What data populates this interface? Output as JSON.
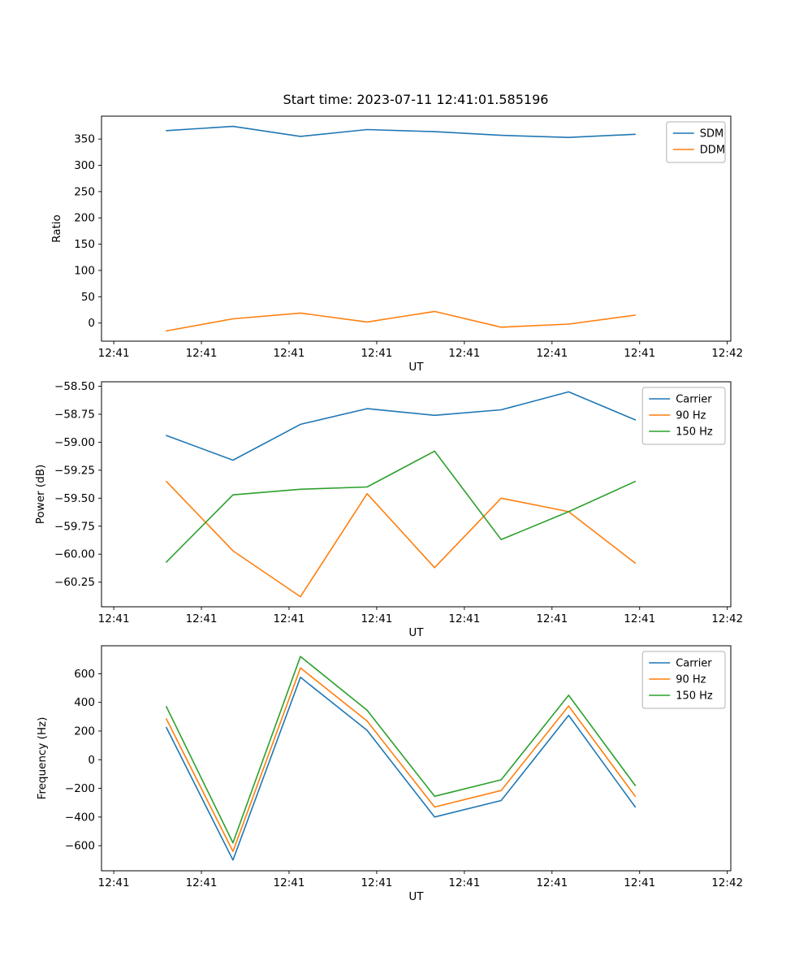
{
  "figure": {
    "title": "Start time: 2023-07-11 12:41:01.585196",
    "background": "#ffffff",
    "accent_colors": {
      "blue": "#1f77b4",
      "orange": "#ff7f0e",
      "green": "#2ca02c"
    }
  },
  "chart_data": [
    {
      "type": "line",
      "name": "ratio-plot",
      "xlabel": "UT",
      "ylabel": "Ratio",
      "x_tick_labels": [
        "12:41",
        "12:41",
        "12:41",
        "12:41",
        "12:41",
        "12:41",
        "12:41",
        "12:42"
      ],
      "y_tick_values": [
        0,
        50,
        100,
        150,
        200,
        250,
        300,
        350
      ],
      "y_tick_labels": [
        "0",
        "50",
        "100",
        "150",
        "200",
        "250",
        "300",
        "350"
      ],
      "xlim": [
        -0.14,
        7.04
      ],
      "ylim": [
        -34.5,
        393.5
      ],
      "grid": false,
      "legend_position": "upper right",
      "x": [
        0.6,
        1.36,
        2.13,
        2.89,
        3.66,
        4.42,
        5.19,
        5.95
      ],
      "series": [
        {
          "name": "SDM",
          "color": "#1f77b4",
          "values": [
            366,
            374,
            355,
            368,
            364,
            357,
            353,
            359
          ]
        },
        {
          "name": "DDM",
          "color": "#ff7f0e",
          "values": [
            -15,
            8,
            19,
            2,
            22,
            -8,
            -2,
            15
          ]
        }
      ]
    },
    {
      "type": "line",
      "name": "power-plot",
      "xlabel": "UT",
      "ylabel": "Power (dB)",
      "x_tick_labels": [
        "12:41",
        "12:41",
        "12:41",
        "12:41",
        "12:41",
        "12:41",
        "12:41",
        "12:42"
      ],
      "y_tick_values": [
        -60.25,
        -60.0,
        -59.75,
        -59.5,
        -59.25,
        -59.0,
        -58.75,
        -58.5
      ],
      "y_tick_labels": [
        "−60.25",
        "−60.00",
        "−59.75",
        "−59.50",
        "−59.25",
        "−59.00",
        "−58.75",
        "−58.50"
      ],
      "xlim": [
        -0.14,
        7.04
      ],
      "ylim": [
        -60.47,
        -58.46
      ],
      "grid": false,
      "legend_position": "upper right",
      "x": [
        0.6,
        1.36,
        2.13,
        2.89,
        3.66,
        4.42,
        5.19,
        5.95
      ],
      "series": [
        {
          "name": "Carrier",
          "color": "#1f77b4",
          "values": [
            -58.94,
            -59.16,
            -58.84,
            -58.7,
            -58.76,
            -58.71,
            -58.55,
            -58.8
          ]
        },
        {
          "name": "90 Hz",
          "color": "#ff7f0e",
          "values": [
            -59.35,
            -59.97,
            -60.38,
            -59.46,
            -60.12,
            -59.5,
            -59.62,
            -60.08
          ]
        },
        {
          "name": "150 Hz",
          "color": "#2ca02c",
          "values": [
            -60.07,
            -59.47,
            -59.42,
            -59.4,
            -59.08,
            -59.87,
            -59.62,
            -59.35
          ]
        }
      ]
    },
    {
      "type": "line",
      "name": "frequency-plot",
      "xlabel": "UT",
      "ylabel": "Frequency (Hz)",
      "x_tick_labels": [
        "12:41",
        "12:41",
        "12:41",
        "12:41",
        "12:41",
        "12:41",
        "12:41",
        "12:42"
      ],
      "y_tick_values": [
        -600,
        -400,
        -200,
        0,
        200,
        400,
        600
      ],
      "y_tick_labels": [
        "−600",
        "−400",
        "−200",
        "0",
        "200",
        "400",
        "600"
      ],
      "xlim": [
        -0.14,
        7.04
      ],
      "ylim": [
        -775,
        795
      ],
      "grid": false,
      "legend_position": "upper right",
      "x": [
        0.6,
        1.36,
        2.13,
        2.89,
        3.66,
        4.42,
        5.19,
        5.95
      ],
      "series": [
        {
          "name": "Carrier",
          "color": "#1f77b4",
          "values": [
            225,
            -700,
            575,
            205,
            -400,
            -285,
            310,
            -330
          ]
        },
        {
          "name": "90 Hz",
          "color": "#ff7f0e",
          "values": [
            285,
            -640,
            640,
            270,
            -330,
            -215,
            375,
            -255
          ]
        },
        {
          "name": "150 Hz",
          "color": "#2ca02c",
          "values": [
            370,
            -580,
            720,
            345,
            -255,
            -140,
            450,
            -180
          ]
        }
      ]
    }
  ]
}
